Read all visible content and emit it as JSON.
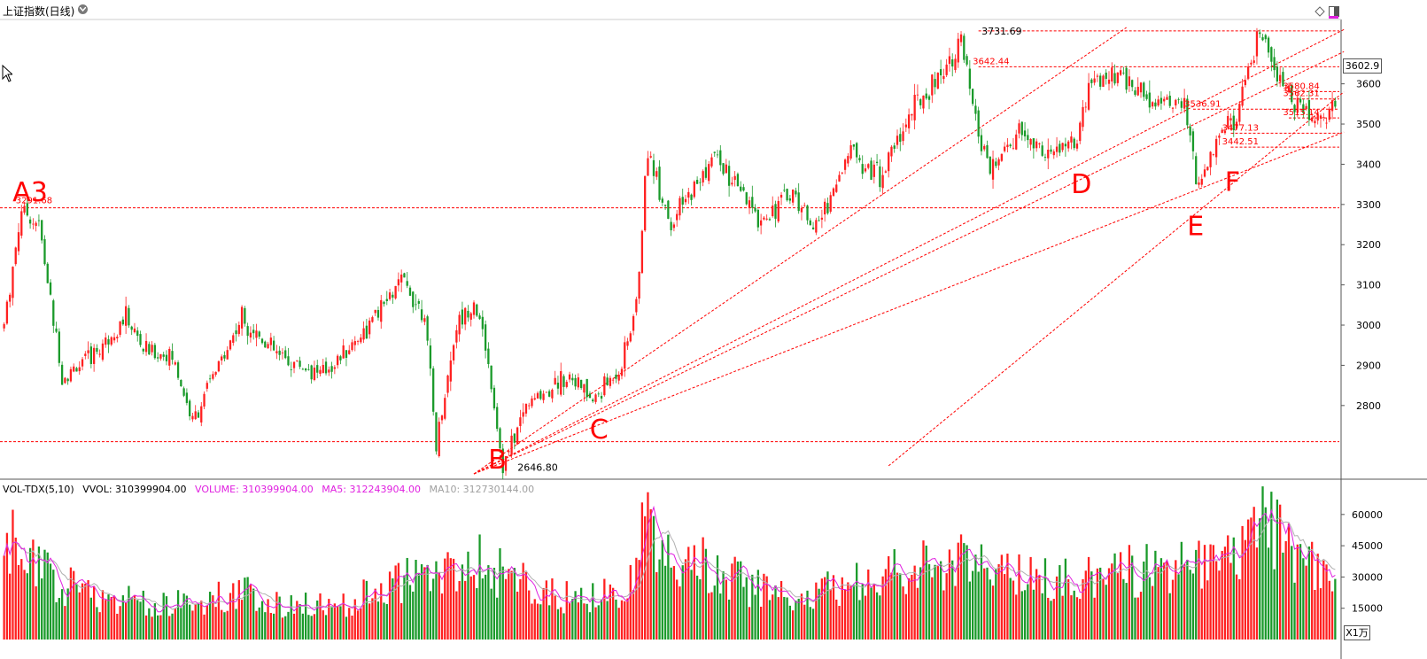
{
  "header": {
    "title": "上证指数(日线)"
  },
  "volume_legend": {
    "name": "VOL-TDX(5,10)",
    "vvol": "VVOL: 310399904.00",
    "volume": "VOLUME: 310399904.00",
    "ma5": "MA5: 312243904.00",
    "ma10": "MA10: 312730144.00"
  },
  "current_price": "3602.9",
  "unit_label": "X1万",
  "colors": {
    "up": "#ff2020",
    "down": "#1a9a2a",
    "annotation": "#ff0000",
    "ma5": "#e020e0",
    "ma10": "#b0b0b0"
  },
  "chart_data": [
    {
      "type": "candlestick",
      "title": "上证指数(日线)",
      "ylim": [
        2630,
        3760
      ],
      "y_ticks": [
        2800,
        2900,
        3000,
        3100,
        3200,
        3300,
        3400,
        3500,
        3600
      ],
      "bars": 460,
      "anchors": [
        {
          "i": 0,
          "v": 3000
        },
        {
          "i": 6,
          "v": 3291.68
        },
        {
          "i": 12,
          "v": 3250
        },
        {
          "i": 16,
          "v": 3060
        },
        {
          "i": 20,
          "v": 2870
        },
        {
          "i": 30,
          "v": 2920
        },
        {
          "i": 42,
          "v": 3020
        },
        {
          "i": 48,
          "v": 2940
        },
        {
          "i": 58,
          "v": 2920
        },
        {
          "i": 65,
          "v": 2760
        },
        {
          "i": 72,
          "v": 2870
        },
        {
          "i": 82,
          "v": 3020
        },
        {
          "i": 95,
          "v": 2920
        },
        {
          "i": 110,
          "v": 2880
        },
        {
          "i": 125,
          "v": 2990
        },
        {
          "i": 137,
          "v": 3110
        },
        {
          "i": 145,
          "v": 3030
        },
        {
          "i": 149,
          "v": 2700
        },
        {
          "i": 156,
          "v": 3000
        },
        {
          "i": 162,
          "v": 3060
        },
        {
          "i": 166,
          "v": 2950
        },
        {
          "i": 170,
          "v": 2750
        },
        {
          "i": 172,
          "v": 2646.8
        },
        {
          "i": 180,
          "v": 2800
        },
        {
          "i": 195,
          "v": 2880
        },
        {
          "i": 203,
          "v": 2810
        },
        {
          "i": 213,
          "v": 2900
        },
        {
          "i": 218,
          "v": 3050
        },
        {
          "i": 222,
          "v": 3440
        },
        {
          "i": 230,
          "v": 3250
        },
        {
          "i": 245,
          "v": 3420
        },
        {
          "i": 260,
          "v": 3260
        },
        {
          "i": 272,
          "v": 3330
        },
        {
          "i": 280,
          "v": 3240
        },
        {
          "i": 292,
          "v": 3440
        },
        {
          "i": 302,
          "v": 3370
        },
        {
          "i": 312,
          "v": 3520
        },
        {
          "i": 320,
          "v": 3600
        },
        {
          "i": 330,
          "v": 3700
        },
        {
          "i": 335,
          "v": 3500
        },
        {
          "i": 340,
          "v": 3380
        },
        {
          "i": 350,
          "v": 3480
        },
        {
          "i": 360,
          "v": 3420
        },
        {
          "i": 370,
          "v": 3460
        },
        {
          "i": 375,
          "v": 3600
        },
        {
          "i": 385,
          "v": 3620
        },
        {
          "i": 395,
          "v": 3560
        },
        {
          "i": 402,
          "v": 3560
        },
        {
          "i": 407,
          "v": 3536.91
        },
        {
          "i": 412,
          "v": 3330
        },
        {
          "i": 418,
          "v": 3480
        },
        {
          "i": 425,
          "v": 3510
        },
        {
          "i": 433,
          "v": 3731.69
        },
        {
          "i": 438,
          "v": 3620
        },
        {
          "i": 445,
          "v": 3560
        },
        {
          "i": 452,
          "v": 3510
        },
        {
          "i": 459,
          "v": 3550
        }
      ],
      "annotations": [
        {
          "text": "A3",
          "x": 6,
          "y": 3335
        },
        {
          "text": "B",
          "x": 170,
          "y": 2670
        },
        {
          "text": "C",
          "x": 205,
          "y": 2745
        },
        {
          "text": "D",
          "x": 371,
          "y": 3355
        },
        {
          "text": "E",
          "x": 411,
          "y": 3250
        },
        {
          "text": "F",
          "x": 424,
          "y": 3360
        }
      ],
      "price_labels": [
        {
          "text": "3291.68",
          "x": 4,
          "y": 3296
        },
        {
          "text": "2646.80",
          "x": 174,
          "y": 2646.8
        },
        {
          "text": "3731.69",
          "x": 334,
          "y": 3731.69
        },
        {
          "text": "3642.44",
          "x": 334,
          "y": 3642.44
        },
        {
          "text": "3536.91",
          "x": 407,
          "y": 3536.91
        },
        {
          "text": "3580.84",
          "x": 441,
          "y": 3580.84
        },
        {
          "text": "3562.31",
          "x": 441,
          "y": 3562.31
        },
        {
          "text": "3515.14",
          "x": 441,
          "y": 3515.14
        },
        {
          "text": "3477.13",
          "x": 420,
          "y": 3477.13
        },
        {
          "text": "3442.51",
          "x": 420,
          "y": 3442.51
        }
      ],
      "horizontal_lines": [
        3291.68,
        2710,
        3731.69,
        3642.44,
        3580.84,
        3562.31,
        3536.91,
        3515.14,
        3477.13,
        3442.51
      ],
      "trend_lines": [
        {
          "x1": 162,
          "y1": 2630,
          "x2": 387,
          "y2": 3740
        },
        {
          "x1": 162,
          "y1": 2630,
          "x2": 462,
          "y2": 3735
        },
        {
          "x1": 162,
          "y1": 2630,
          "x2": 462,
          "y2": 3680
        },
        {
          "x1": 162,
          "y1": 2630,
          "x2": 462,
          "y2": 3480
        },
        {
          "x1": 305,
          "y1": 2650,
          "x2": 462,
          "y2": 3580
        }
      ]
    },
    {
      "type": "bar",
      "title": "VOL-TDX(5,10)",
      "ylim": [
        0,
        68000
      ],
      "y_ticks": [
        15000,
        30000,
        45000,
        60000
      ],
      "anchors": [
        {
          "i": 0,
          "v": 40000
        },
        {
          "i": 4,
          "v": 47000
        },
        {
          "i": 15,
          "v": 30000
        },
        {
          "i": 30,
          "v": 22000
        },
        {
          "i": 50,
          "v": 17000
        },
        {
          "i": 70,
          "v": 18000
        },
        {
          "i": 80,
          "v": 24000
        },
        {
          "i": 90,
          "v": 18000
        },
        {
          "i": 110,
          "v": 16000
        },
        {
          "i": 120,
          "v": 18000
        },
        {
          "i": 130,
          "v": 25000
        },
        {
          "i": 140,
          "v": 30000
        },
        {
          "i": 150,
          "v": 30000
        },
        {
          "i": 163,
          "v": 38000
        },
        {
          "i": 172,
          "v": 32000
        },
        {
          "i": 185,
          "v": 22000
        },
        {
          "i": 200,
          "v": 20000
        },
        {
          "i": 215,
          "v": 22000
        },
        {
          "i": 222,
          "v": 60000
        },
        {
          "i": 230,
          "v": 40000
        },
        {
          "i": 245,
          "v": 34000
        },
        {
          "i": 260,
          "v": 24000
        },
        {
          "i": 275,
          "v": 19000
        },
        {
          "i": 290,
          "v": 28000
        },
        {
          "i": 310,
          "v": 32000
        },
        {
          "i": 330,
          "v": 38000
        },
        {
          "i": 345,
          "v": 30000
        },
        {
          "i": 365,
          "v": 28000
        },
        {
          "i": 385,
          "v": 32000
        },
        {
          "i": 400,
          "v": 35000
        },
        {
          "i": 412,
          "v": 38000
        },
        {
          "i": 425,
          "v": 42000
        },
        {
          "i": 433,
          "v": 57000
        },
        {
          "i": 445,
          "v": 40000
        },
        {
          "i": 452,
          "v": 35000
        },
        {
          "i": 459,
          "v": 31000
        }
      ]
    }
  ]
}
